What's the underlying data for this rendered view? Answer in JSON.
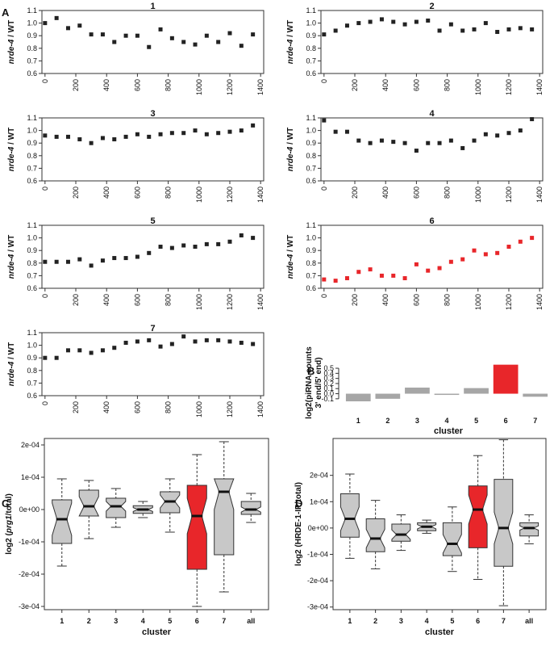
{
  "panel_letters": [
    "A",
    "B",
    "C",
    "D"
  ],
  "chart_data": [
    {
      "type": "scatter",
      "panel": "A",
      "title": "1",
      "ylabel": "nrde-4 / WT",
      "ylabel_italic": "nrde-4",
      "ylabel_rest": " / WT",
      "x": [
        0,
        75,
        150,
        225,
        300,
        375,
        450,
        525,
        600,
        675,
        750,
        825,
        900,
        975,
        1050,
        1125,
        1200,
        1275,
        1350
      ],
      "y": [
        1.0,
        1.04,
        0.96,
        0.98,
        0.91,
        0.91,
        0.85,
        0.9,
        0.9,
        0.81,
        0.95,
        0.88,
        0.85,
        0.83,
        0.9,
        0.85,
        0.92,
        0.82,
        0.91
      ],
      "xticks": [
        0,
        200,
        400,
        600,
        800,
        1000,
        1200,
        1400
      ],
      "xlim": [
        -20,
        1420
      ],
      "ylim": [
        0.6,
        1.1
      ],
      "yticks": [
        "0.6",
        "0.7",
        "0.8",
        "0.9",
        "1.0",
        "1.1"
      ],
      "color": "#222222"
    },
    {
      "type": "scatter",
      "panel": "A",
      "title": "2",
      "ylabel": "nrde-4 / WT",
      "ylabel_italic": "nrde-4",
      "ylabel_rest": " / WT",
      "x": [
        0,
        75,
        150,
        225,
        300,
        375,
        450,
        525,
        600,
        675,
        750,
        825,
        900,
        975,
        1050,
        1125,
        1200,
        1275,
        1350
      ],
      "y": [
        0.91,
        0.94,
        0.98,
        1.0,
        1.01,
        1.03,
        1.01,
        0.99,
        1.01,
        1.02,
        0.94,
        0.99,
        0.94,
        0.95,
        1.0,
        0.93,
        0.95,
        0.96,
        0.95
      ],
      "xticks": [
        0,
        200,
        400,
        600,
        800,
        1000,
        1200,
        1400
      ],
      "xlim": [
        -20,
        1420
      ],
      "ylim": [
        0.6,
        1.1
      ],
      "yticks": [
        "0.6",
        "0.7",
        "0.8",
        "0.9",
        "1.0",
        "1.1"
      ],
      "color": "#222222"
    },
    {
      "type": "scatter",
      "panel": "A",
      "title": "3",
      "ylabel": "nrde-4 / WT",
      "ylabel_italic": "nrde-4",
      "ylabel_rest": " / WT",
      "x": [
        0,
        75,
        150,
        225,
        300,
        375,
        450,
        525,
        600,
        675,
        750,
        825,
        900,
        975,
        1050,
        1125,
        1200,
        1275,
        1350
      ],
      "y": [
        0.96,
        0.95,
        0.95,
        0.93,
        0.9,
        0.94,
        0.93,
        0.95,
        0.97,
        0.95,
        0.97,
        0.98,
        0.98,
        1.0,
        0.97,
        0.98,
        0.99,
        1.0,
        1.04
      ],
      "xticks": [
        0,
        200,
        400,
        600,
        800,
        1000,
        1200,
        1400
      ],
      "xlim": [
        -20,
        1420
      ],
      "ylim": [
        0.6,
        1.1
      ],
      "yticks": [
        "0.6",
        "0.7",
        "0.8",
        "0.9",
        "1.0",
        "1.1"
      ],
      "color": "#222222"
    },
    {
      "type": "scatter",
      "panel": "A",
      "title": "4",
      "ylabel": "nrde-4 / WT",
      "ylabel_italic": "nrde-4",
      "ylabel_rest": " / WT",
      "x": [
        0,
        75,
        150,
        225,
        300,
        375,
        450,
        525,
        600,
        675,
        750,
        825,
        900,
        975,
        1050,
        1125,
        1200,
        1275,
        1350
      ],
      "y": [
        1.08,
        0.99,
        0.99,
        0.92,
        0.9,
        0.92,
        0.91,
        0.9,
        0.84,
        0.9,
        0.9,
        0.92,
        0.86,
        0.92,
        0.97,
        0.96,
        0.98,
        1.0,
        1.09
      ],
      "xticks": [
        0,
        200,
        400,
        600,
        800,
        1000,
        1200,
        1400
      ],
      "xlim": [
        -20,
        1420
      ],
      "ylim": [
        0.6,
        1.1
      ],
      "yticks": [
        "0.6",
        "0.7",
        "0.8",
        "0.9",
        "1.0",
        "1.1"
      ],
      "color": "#222222"
    },
    {
      "type": "scatter",
      "panel": "A",
      "title": "5",
      "ylabel": "nrde-4 / WT",
      "ylabel_italic": "nrde-4",
      "ylabel_rest": " / WT",
      "x": [
        0,
        75,
        150,
        225,
        300,
        375,
        450,
        525,
        600,
        675,
        750,
        825,
        900,
        975,
        1050,
        1125,
        1200,
        1275,
        1350
      ],
      "y": [
        0.81,
        0.81,
        0.81,
        0.83,
        0.78,
        0.82,
        0.84,
        0.84,
        0.85,
        0.88,
        0.93,
        0.92,
        0.94,
        0.93,
        0.95,
        0.95,
        0.97,
        1.02,
        1.0
      ],
      "xticks": [
        0,
        200,
        400,
        600,
        800,
        1000,
        1200,
        1400
      ],
      "xlim": [
        -20,
        1420
      ],
      "ylim": [
        0.6,
        1.1
      ],
      "yticks": [
        "0.6",
        "0.7",
        "0.8",
        "0.9",
        "1.0",
        "1.1"
      ],
      "color": "#222222"
    },
    {
      "type": "scatter",
      "panel": "A",
      "title": "6",
      "ylabel": "nrde-4 / WT",
      "ylabel_italic": "nrde-4",
      "ylabel_rest": " / WT",
      "x": [
        0,
        75,
        150,
        225,
        300,
        375,
        450,
        525,
        600,
        675,
        750,
        825,
        900,
        975,
        1050,
        1125,
        1200,
        1275,
        1350
      ],
      "y": [
        0.67,
        0.66,
        0.68,
        0.73,
        0.75,
        0.7,
        0.7,
        0.68,
        0.79,
        0.74,
        0.76,
        0.81,
        0.83,
        0.9,
        0.87,
        0.88,
        0.93,
        0.97,
        1.0
      ],
      "xticks": [
        0,
        200,
        400,
        600,
        800,
        1000,
        1200,
        1400
      ],
      "xlim": [
        -20,
        1420
      ],
      "ylim": [
        0.6,
        1.1
      ],
      "yticks": [
        "0.6",
        "0.7",
        "0.8",
        "0.9",
        "1.0",
        "1.1"
      ],
      "color": "#e8262a"
    },
    {
      "type": "scatter",
      "panel": "A",
      "title": "7",
      "ylabel": "nrde-4 / WT",
      "ylabel_italic": "nrde-4",
      "ylabel_rest": " / WT",
      "x": [
        0,
        75,
        150,
        225,
        300,
        375,
        450,
        525,
        600,
        675,
        750,
        825,
        900,
        975,
        1050,
        1125,
        1200,
        1275,
        1350
      ],
      "y": [
        0.9,
        0.9,
        0.96,
        0.96,
        0.94,
        0.96,
        0.98,
        1.02,
        1.03,
        1.04,
        0.99,
        1.01,
        1.07,
        1.03,
        1.04,
        1.04,
        1.03,
        1.02,
        1.01
      ],
      "xticks": [
        0,
        200,
        400,
        600,
        800,
        1000,
        1200,
        1400
      ],
      "xlim": [
        -20,
        1420
      ],
      "ylim": [
        0.6,
        1.1
      ],
      "yticks": [
        "0.6",
        "0.7",
        "0.8",
        "0.9",
        "1.0",
        "1.1"
      ],
      "color": "#222222"
    },
    {
      "type": "bar",
      "panel": "B",
      "categories": [
        "1",
        "2",
        "3",
        "4",
        "5",
        "6",
        "7"
      ],
      "values": [
        -0.15,
        -0.1,
        0.12,
        -0.02,
        0.11,
        0.57,
        -0.06
      ],
      "colors": [
        "#a6a6a6",
        "#a6a6a6",
        "#a6a6a6",
        "#a6a6a6",
        "#a6a6a6",
        "#e8262a",
        "#a6a6a6"
      ],
      "xlabel": "cluster",
      "ylabel_line1": "log2(piRNA counts",
      "ylabel_line2": "3' end/5' end)",
      "ylim": [
        -0.15,
        0.55
      ],
      "yticks": [
        "-0.1",
        "0.0",
        "0.1",
        "0.2",
        "0.3",
        "0.4",
        "0.5"
      ]
    },
    {
      "type": "boxplot",
      "panel": "C",
      "categories": [
        "1",
        "2",
        "3",
        "4",
        "5",
        "6",
        "7",
        "all"
      ],
      "ylabel_pre": "log2 (",
      "ylabel_italic": "prg1",
      "ylabel_post": "/total)",
      "xlabel": "cluster",
      "yticks": [
        "-3e-04",
        "-2e-04",
        "-1e-04",
        "0e+00",
        "1e-04",
        "2e-04"
      ],
      "ylim": [
        -3.1,
        2.2
      ],
      "value_scale": "e-04",
      "boxes": [
        {
          "min": -1.75,
          "q1": -1.05,
          "median": -0.3,
          "q3": 0.3,
          "max": 0.95,
          "notch": 0.5,
          "color": "#c8c8c8"
        },
        {
          "min": -0.9,
          "q1": -0.2,
          "median": 0.1,
          "q3": 0.6,
          "max": 0.9,
          "notch": 0.3,
          "color": "#c8c8c8"
        },
        {
          "min": -0.55,
          "q1": -0.25,
          "median": 0.1,
          "q3": 0.35,
          "max": 0.65,
          "notch": 0.15,
          "color": "#c8c8c8"
        },
        {
          "min": -0.25,
          "q1": -0.12,
          "median": 0.0,
          "q3": 0.12,
          "max": 0.25,
          "notch": 0.06,
          "color": "#c8c8c8"
        },
        {
          "min": -0.7,
          "q1": -0.1,
          "median": 0.25,
          "q3": 0.55,
          "max": 0.95,
          "notch": 0.2,
          "color": "#c8c8c8"
        },
        {
          "min": -3.0,
          "q1": -1.85,
          "median": -0.2,
          "q3": 0.75,
          "max": 1.7,
          "notch": 0.55,
          "color": "#e8262a"
        },
        {
          "min": -2.55,
          "q1": -1.4,
          "median": 0.55,
          "q3": 0.95,
          "max": 2.1,
          "notch": 0.55,
          "color": "#c8c8c8"
        },
        {
          "min": -0.4,
          "q1": -0.15,
          "median": 0.0,
          "q3": 0.25,
          "max": 0.5,
          "notch": 0.08,
          "color": "#c8c8c8"
        }
      ]
    },
    {
      "type": "boxplot",
      "panel": "D",
      "categories": [
        "1",
        "2",
        "3",
        "4",
        "5",
        "6",
        "7",
        "all"
      ],
      "ylabel_pre": "log2 (HRDE-1-IP/total)",
      "ylabel_italic": "",
      "ylabel_post": "",
      "xlabel": "cluster",
      "yticks": [
        "-3e-04",
        "-2e-04",
        "-1e-04",
        "0e+00",
        "1e-04",
        "2e-04"
      ],
      "ylim": [
        -3.1,
        3.4
      ],
      "value_scale": "e-04",
      "boxes": [
        {
          "min": -1.15,
          "q1": -0.35,
          "median": 0.35,
          "q3": 1.3,
          "max": 2.05,
          "notch": 0.45,
          "color": "#c8c8c8"
        },
        {
          "min": -1.55,
          "q1": -0.9,
          "median": -0.4,
          "q3": 0.35,
          "max": 1.05,
          "notch": 0.35,
          "color": "#c8c8c8"
        },
        {
          "min": -0.85,
          "q1": -0.5,
          "median": -0.25,
          "q3": 0.15,
          "max": 0.5,
          "notch": 0.18,
          "color": "#c8c8c8"
        },
        {
          "min": -0.2,
          "q1": -0.1,
          "median": 0.05,
          "q3": 0.2,
          "max": 0.3,
          "notch": 0.08,
          "color": "#c8c8c8"
        },
        {
          "min": -1.65,
          "q1": -1.05,
          "median": -0.6,
          "q3": 0.2,
          "max": 0.8,
          "notch": 0.35,
          "color": "#c8c8c8"
        },
        {
          "min": -1.95,
          "q1": -0.75,
          "median": 0.7,
          "q3": 1.6,
          "max": 2.75,
          "notch": 0.55,
          "color": "#e8262a"
        },
        {
          "min": -2.95,
          "q1": -1.45,
          "median": 0.0,
          "q3": 1.85,
          "max": 3.35,
          "notch": 0.6,
          "color": "#c8c8c8"
        },
        {
          "min": -0.6,
          "q1": -0.3,
          "median": 0.0,
          "q3": 0.2,
          "max": 0.5,
          "notch": 0.08,
          "color": "#c8c8c8"
        }
      ]
    }
  ]
}
